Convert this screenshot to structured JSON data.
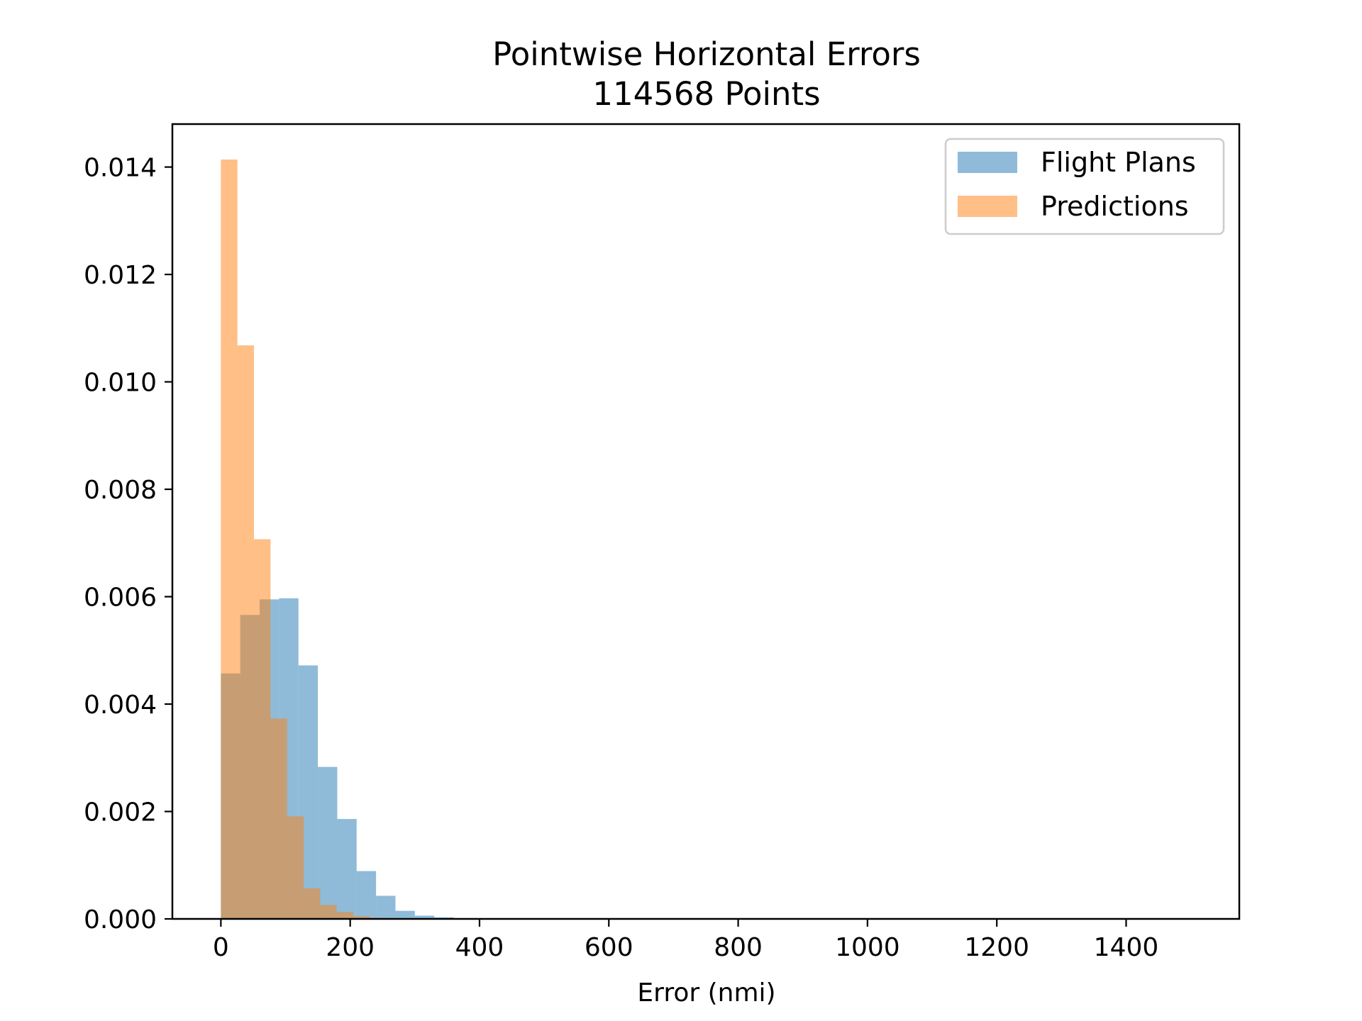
{
  "chart_data": {
    "type": "bar",
    "subtype": "histogram-overlay",
    "title": "Pointwise Horizontal Errors",
    "subtitle": "114568 Points",
    "xlabel": "Error (nmi)",
    "ylabel": "",
    "xlim": [
      -75,
      1575
    ],
    "ylim": [
      0,
      0.0148
    ],
    "xticks": [
      0,
      200,
      400,
      600,
      800,
      1000,
      1200,
      1400
    ],
    "yticks": [
      0.0,
      0.002,
      0.004,
      0.006,
      0.008,
      0.01,
      0.012,
      0.014
    ],
    "ytick_labels": [
      "0.000",
      "0.002",
      "0.004",
      "0.006",
      "0.008",
      "0.010",
      "0.012",
      "0.014"
    ],
    "grid": false,
    "legend_position": "top-right",
    "series": [
      {
        "name": "Flight Plans",
        "color": "#1f77b4",
        "opacity": 0.5,
        "bin_edges": [
          0,
          30,
          60,
          90,
          120,
          150,
          180,
          210,
          240,
          270,
          300,
          330,
          360
        ],
        "values": [
          0.00457,
          0.00566,
          0.00595,
          0.00597,
          0.00472,
          0.00283,
          0.00186,
          0.00089,
          0.00043,
          0.00015,
          6e-05,
          3e-05
        ]
      },
      {
        "name": "Predictions",
        "color": "#ff7f0e",
        "opacity": 0.5,
        "bin_edges": [
          0,
          25.6,
          51.2,
          76.8,
          102.4,
          128,
          153.6,
          179.2,
          204.8,
          230.4,
          256
        ],
        "values": [
          0.01414,
          0.01068,
          0.00707,
          0.00373,
          0.00191,
          0.00057,
          0.00026,
          0.00013,
          5e-05,
          2e-05
        ]
      }
    ]
  }
}
